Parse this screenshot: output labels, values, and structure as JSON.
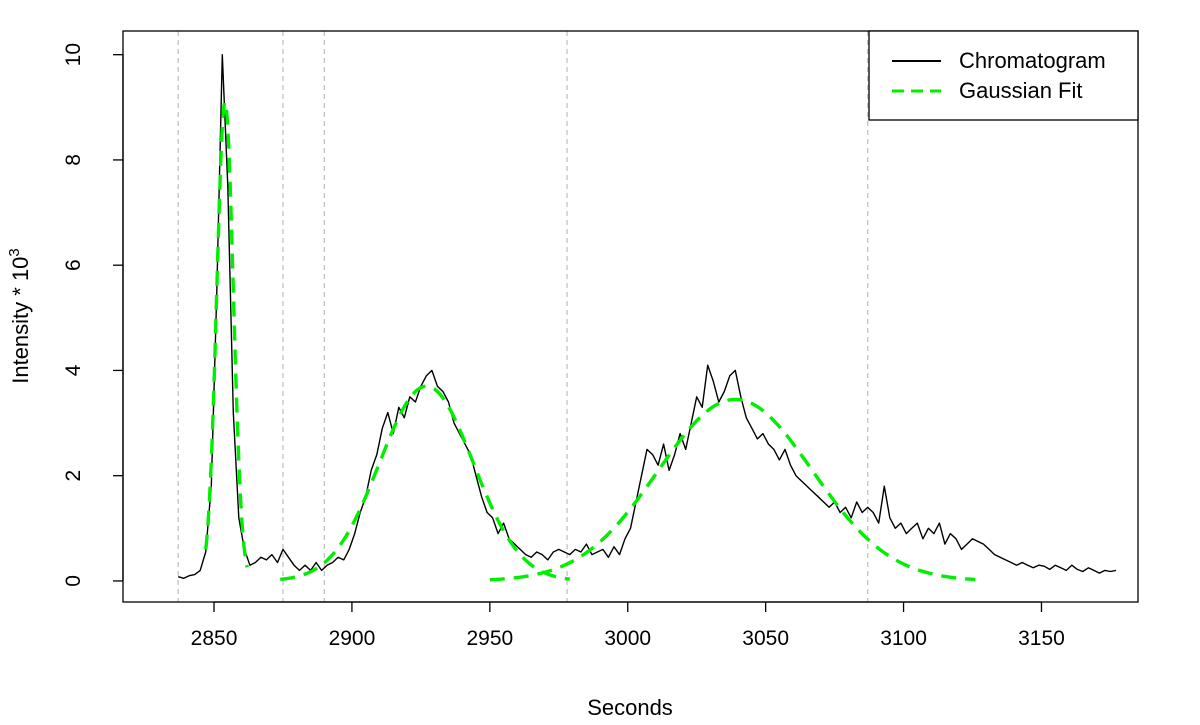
{
  "chart_data": {
    "type": "line",
    "title": "",
    "xlabel": "Seconds",
    "ylabel": "Intensity * 10",
    "ylabel_superscript": "3",
    "xlim": [
      2817,
      3185
    ],
    "ylim": [
      -0.4,
      10.45
    ],
    "xticks": [
      2850,
      2900,
      2950,
      3000,
      3050,
      3100,
      3150
    ],
    "xtick_labels": [
      "2850",
      "2900",
      "2950",
      "3000",
      "3050",
      "3100",
      "3150"
    ],
    "yticks": [
      0,
      2,
      4,
      6,
      8,
      10
    ],
    "ytick_labels": [
      "0",
      "2",
      "4",
      "6",
      "8",
      "10"
    ],
    "grid": false,
    "vlines": [
      2837,
      2875,
      2890,
      2978,
      3087
    ],
    "legend": {
      "position": "top-right",
      "entries": [
        {
          "label": "Chromatogram",
          "color": "#000000",
          "style": "solid"
        },
        {
          "label": "Gaussian Fit",
          "color": "#00ee00",
          "style": "dashed"
        }
      ]
    },
    "series": [
      {
        "name": "Chromatogram",
        "color": "#000000",
        "style": "solid",
        "x": [
          2837,
          2839,
          2841,
          2843,
          2845,
          2847,
          2849,
          2851,
          2853,
          2855,
          2857,
          2859,
          2861,
          2863,
          2865,
          2867,
          2869,
          2871,
          2873,
          2875,
          2877,
          2879,
          2881,
          2883,
          2885,
          2887,
          2889,
          2891,
          2893,
          2895,
          2897,
          2899,
          2901,
          2903,
          2905,
          2907,
          2909,
          2911,
          2913,
          2915,
          2917,
          2919,
          2921,
          2923,
          2925,
          2927,
          2929,
          2931,
          2933,
          2935,
          2937,
          2939,
          2941,
          2943,
          2945,
          2947,
          2949,
          2951,
          2953,
          2955,
          2957,
          2959,
          2961,
          2963,
          2965,
          2967,
          2969,
          2971,
          2973,
          2975,
          2977,
          2979,
          2981,
          2983,
          2985,
          2987,
          2989,
          2991,
          2993,
          2995,
          2997,
          2999,
          3001,
          3003,
          3005,
          3007,
          3009,
          3011,
          3013,
          3015,
          3017,
          3019,
          3021,
          3023,
          3025,
          3027,
          3029,
          3031,
          3033,
          3035,
          3037,
          3039,
          3041,
          3043,
          3045,
          3047,
          3049,
          3051,
          3053,
          3055,
          3057,
          3059,
          3061,
          3063,
          3065,
          3067,
          3069,
          3071,
          3073,
          3075,
          3077,
          3079,
          3081,
          3083,
          3085,
          3087,
          3089,
          3091,
          3093,
          3095,
          3097,
          3099,
          3101,
          3103,
          3105,
          3107,
          3109,
          3111,
          3113,
          3115,
          3117,
          3119,
          3121,
          3123,
          3125,
          3127,
          3129,
          3131,
          3133,
          3135,
          3137,
          3139,
          3141,
          3143,
          3145,
          3147,
          3149,
          3151,
          3153,
          3155,
          3157,
          3159,
          3161,
          3163,
          3165,
          3167,
          3169,
          3171,
          3173,
          3175,
          3177
        ],
        "values": [
          0.08,
          0.05,
          0.1,
          0.12,
          0.2,
          0.55,
          1.8,
          5.5,
          10.0,
          7.5,
          3.2,
          1.2,
          0.6,
          0.3,
          0.35,
          0.45,
          0.4,
          0.5,
          0.35,
          0.6,
          0.45,
          0.3,
          0.2,
          0.3,
          0.2,
          0.35,
          0.2,
          0.3,
          0.35,
          0.45,
          0.4,
          0.6,
          0.9,
          1.3,
          1.6,
          2.1,
          2.4,
          2.9,
          3.2,
          2.8,
          3.3,
          3.1,
          3.5,
          3.4,
          3.7,
          3.9,
          4.0,
          3.7,
          3.6,
          3.4,
          3.0,
          2.8,
          2.6,
          2.4,
          2.0,
          1.6,
          1.3,
          1.2,
          0.9,
          1.1,
          0.8,
          0.7,
          0.6,
          0.5,
          0.45,
          0.55,
          0.5,
          0.4,
          0.55,
          0.6,
          0.55,
          0.5,
          0.6,
          0.55,
          0.7,
          0.5,
          0.55,
          0.6,
          0.45,
          0.65,
          0.5,
          0.8,
          1.0,
          1.5,
          2.0,
          2.5,
          2.4,
          2.2,
          2.6,
          2.1,
          2.4,
          2.8,
          2.5,
          3.0,
          3.5,
          3.3,
          4.1,
          3.8,
          3.4,
          3.6,
          3.9,
          4.0,
          3.5,
          3.1,
          2.9,
          2.7,
          2.8,
          2.6,
          2.5,
          2.3,
          2.5,
          2.2,
          2.0,
          1.9,
          1.8,
          1.7,
          1.6,
          1.5,
          1.4,
          1.5,
          1.3,
          1.4,
          1.2,
          1.5,
          1.3,
          1.4,
          1.3,
          1.1,
          1.8,
          1.2,
          1.0,
          1.1,
          0.9,
          1.0,
          1.1,
          0.8,
          1.0,
          0.9,
          1.1,
          0.7,
          0.9,
          0.8,
          0.6,
          0.7,
          0.8,
          0.75,
          0.7,
          0.6,
          0.5,
          0.45,
          0.4,
          0.35,
          0.3,
          0.35,
          0.3,
          0.25,
          0.3,
          0.28,
          0.22,
          0.3,
          0.25,
          0.2,
          0.3,
          0.22,
          0.18,
          0.25,
          0.2,
          0.15,
          0.2,
          0.18,
          0.2
        ]
      },
      {
        "name": "Gaussian Fit",
        "color": "#00ee00",
        "style": "dashed",
        "segments": [
          {
            "mu": 2854,
            "sigma": 3.0,
            "amplitude": 9.1,
            "x_range": [
              2847,
              2862
            ]
          },
          {
            "mu": 2927,
            "sigma": 17.0,
            "amplitude": 3.7,
            "x_range": [
              2874,
              2979
            ]
          },
          {
            "mu": 3039,
            "sigma": 28.0,
            "amplitude": 3.45,
            "x_range": [
              2950,
              3126
            ]
          }
        ]
      }
    ]
  }
}
